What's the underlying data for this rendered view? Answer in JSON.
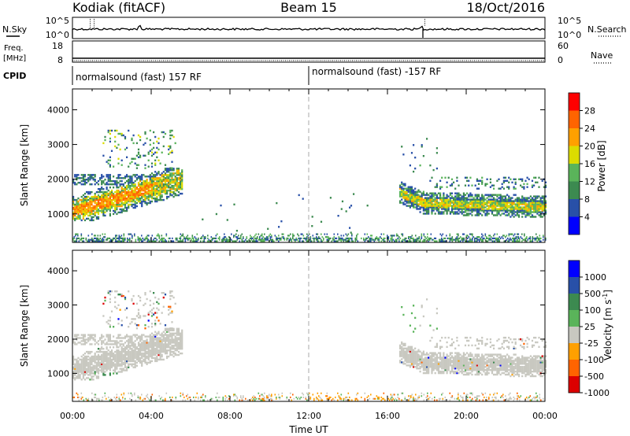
{
  "header": {
    "station": "Kodiak (fitACF)",
    "beam": "Beam 15",
    "date": "18/Oct/2016"
  },
  "noise_panel": {
    "left_label": "N.Sky",
    "right_label": "N.Search",
    "left_ticks": [
      "10^5",
      "10^0"
    ],
    "right_ticks": [
      "10^5",
      "10^0"
    ]
  },
  "freq_panel": {
    "left_label_line1": "Freq.",
    "left_label_line2": "[MHz]",
    "right_label": "Nave",
    "left_ticks": [
      "18",
      "8"
    ],
    "right_ticks": [
      "60",
      "0"
    ]
  },
  "cpid_panel": {
    "label": "CPID",
    "segments": [
      {
        "start_hour": 0,
        "text": "normalsound (fast) 157 RF"
      },
      {
        "start_hour": 12,
        "text": "normalsound (fast) -157 RF"
      }
    ]
  },
  "time_axis": {
    "label": "Time UT",
    "ticks": [
      "00:00",
      "04:00",
      "08:00",
      "12:00",
      "16:00",
      "20:00",
      "00:00"
    ]
  },
  "chart_data": [
    {
      "type": "heatmap",
      "title": "",
      "xlabel": "Time UT",
      "ylabel": "Slant Range [km]",
      "x_range_hours": [
        0,
        24
      ],
      "ylim": [
        180,
        4600
      ],
      "y_ticks": [
        1000,
        2000,
        3000,
        4000
      ],
      "colorbar": {
        "label": "Power [dB]",
        "ticks": [
          "28",
          "24",
          "20",
          "16",
          "12",
          "8",
          "4"
        ],
        "colors": [
          "#0000ff",
          "#2850a8",
          "#3c8a50",
          "#5ab45a",
          "#dcdc00",
          "#ffa000",
          "#ff6400",
          "#ff0000"
        ]
      },
      "features": [
        {
          "region": "morning E/F echoes",
          "hours": [
            0,
            5.5
          ],
          "range_km": [
            700,
            2300
          ],
          "power_db": [
            8,
            28
          ]
        },
        {
          "region": "evening F echoes",
          "hours": [
            16.5,
            24
          ],
          "range_km": [
            900,
            1900
          ],
          "power_db": [
            8,
            20
          ]
        },
        {
          "region": "near-range ground/meteor",
          "hours": [
            0,
            24
          ],
          "range_km": [
            180,
            400
          ],
          "power_db": [
            4,
            16
          ]
        }
      ]
    },
    {
      "type": "heatmap",
      "title": "",
      "xlabel": "Time UT",
      "ylabel": "Slant Range [km]",
      "x_range_hours": [
        0,
        24
      ],
      "ylim": [
        180,
        4600
      ],
      "y_ticks": [
        1000,
        2000,
        3000,
        4000
      ],
      "colorbar": {
        "label": "Velocity [m s^-1]",
        "ticks": [
          "1000",
          "500",
          "100",
          "25",
          "-25",
          "-100",
          "-500",
          "-1000"
        ],
        "colors": [
          "#dc0000",
          "#ff6400",
          "#ffa000",
          "#c8c8c0",
          "#5ab45a",
          "#3c8a50",
          "#2850a8",
          "#0000ff"
        ]
      },
      "features": [
        {
          "region": "ground scatter",
          "hours": [
            0,
            5.5
          ],
          "range_km": [
            900,
            2200
          ],
          "velocity": [
            -25,
            25
          ]
        },
        {
          "region": "ionospheric scatter",
          "hours": [
            1,
            4
          ],
          "range_km": [
            700,
            1000
          ],
          "velocity": [
            100,
            500
          ]
        },
        {
          "region": "ground scatter",
          "hours": [
            16.5,
            24
          ],
          "range_km": [
            900,
            1800
          ],
          "velocity": [
            -25,
            25
          ]
        }
      ]
    }
  ],
  "colors": {
    "dashed_line": "#aaaaaa",
    "ground_scatter": "#c8c8c0"
  }
}
